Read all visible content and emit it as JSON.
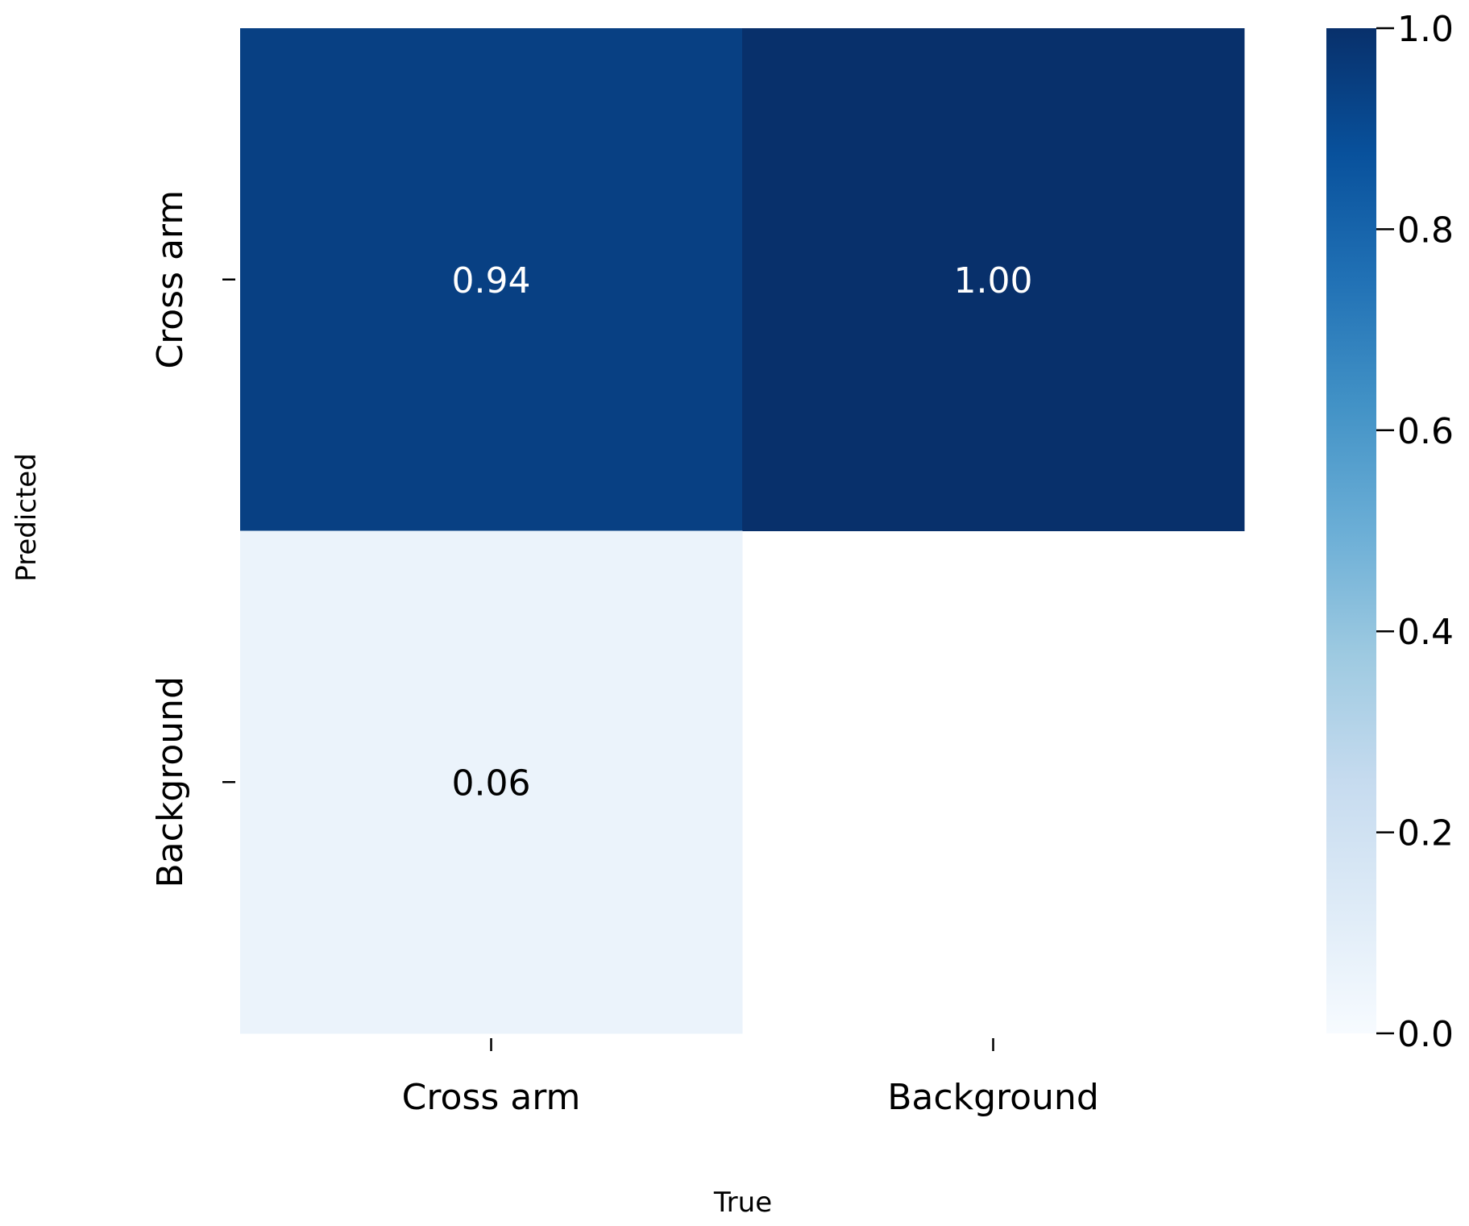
{
  "chart_data": {
    "type": "heatmap",
    "xlabel": "True",
    "ylabel": "Predicted",
    "x_categories": [
      "Cross arm",
      "Background"
    ],
    "y_categories": [
      "Cross arm",
      "Background"
    ],
    "values": [
      [
        0.94,
        1.0
      ],
      [
        0.06,
        null
      ]
    ],
    "cell_labels": [
      [
        "0.94",
        "1.00"
      ],
      [
        "0.06",
        ""
      ]
    ],
    "colorbar": {
      "min": 0.0,
      "max": 1.0,
      "ticks": [
        {
          "value": 0.0,
          "label": "0.0"
        },
        {
          "value": 0.2,
          "label": "0.2"
        },
        {
          "value": 0.4,
          "label": "0.4"
        },
        {
          "value": 0.6,
          "label": "0.6"
        },
        {
          "value": 0.8,
          "label": "0.8"
        },
        {
          "value": 1.0,
          "label": "1.0"
        }
      ],
      "colormap": "Blues"
    }
  }
}
